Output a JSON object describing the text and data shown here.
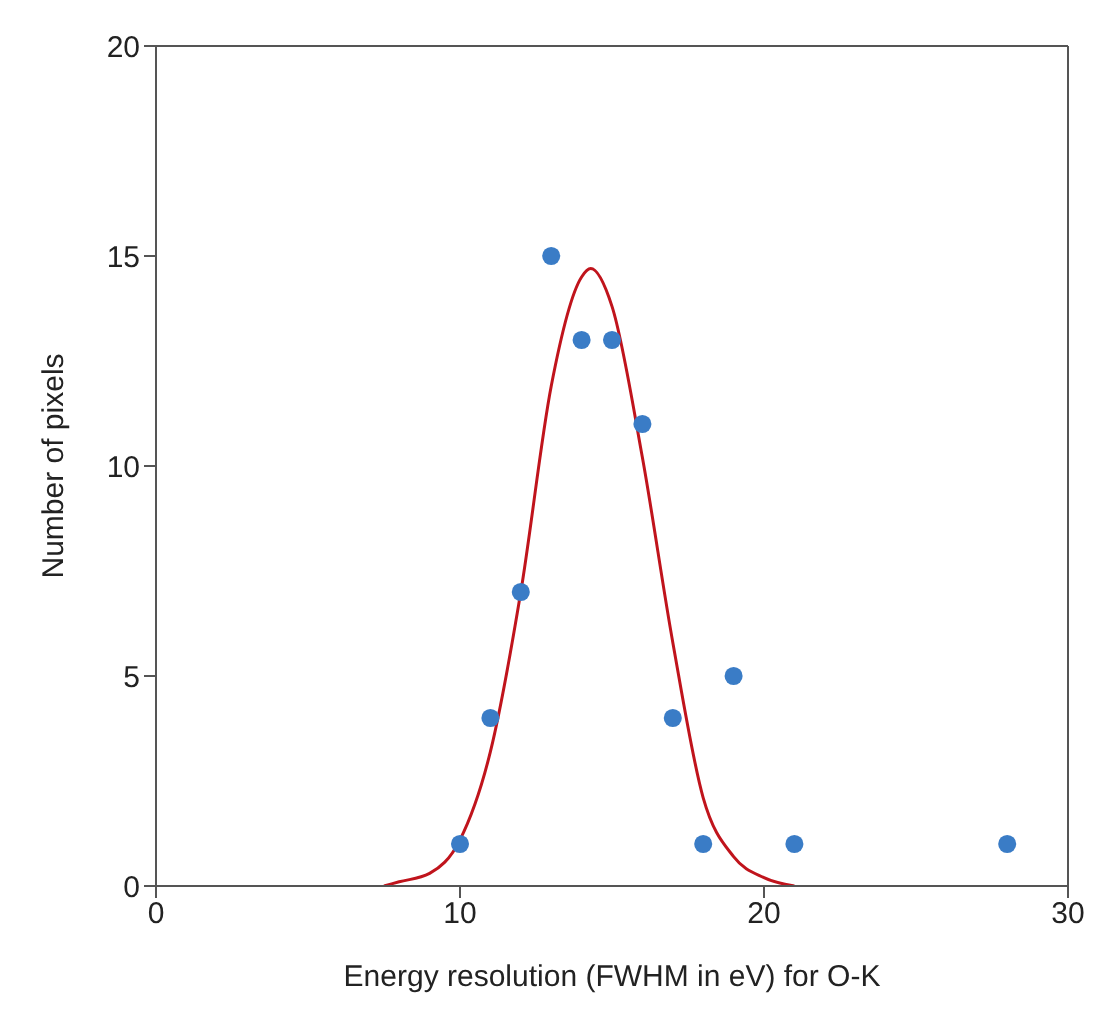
{
  "chart_data": {
    "type": "scatter",
    "xlabel": "Energy resolution (FWHM in eV) for O-K",
    "ylabel": "Number of pixels",
    "xlim": [
      0,
      30
    ],
    "xticks": [
      0,
      10,
      20,
      30
    ],
    "ylim": [
      0,
      20
    ],
    "yticks": [
      0,
      5,
      10,
      15,
      20
    ],
    "grid": false,
    "marker": "circle",
    "series": [
      {
        "color": "#3a7cc6",
        "x": [
          10,
          11,
          12,
          13,
          14,
          15,
          16,
          17,
          18,
          19,
          21,
          28
        ],
        "values": [
          1,
          4,
          7,
          15,
          13,
          13,
          11,
          4,
          1,
          5,
          1,
          1
        ]
      },
      {
        "type": "line",
        "color": "#c0141c",
        "marker": "none",
        "x": [
          7.5,
          8,
          9,
          10,
          11,
          12,
          13,
          14,
          14.3,
          15,
          16,
          17,
          18,
          19,
          20,
          21
        ],
        "values": [
          0,
          0.1,
          0.3,
          1.1,
          3.2,
          7,
          11.9,
          14.5,
          14.7,
          13.8,
          10.2,
          5.8,
          2.1,
          0.7,
          0.2,
          0
        ]
      }
    ]
  }
}
